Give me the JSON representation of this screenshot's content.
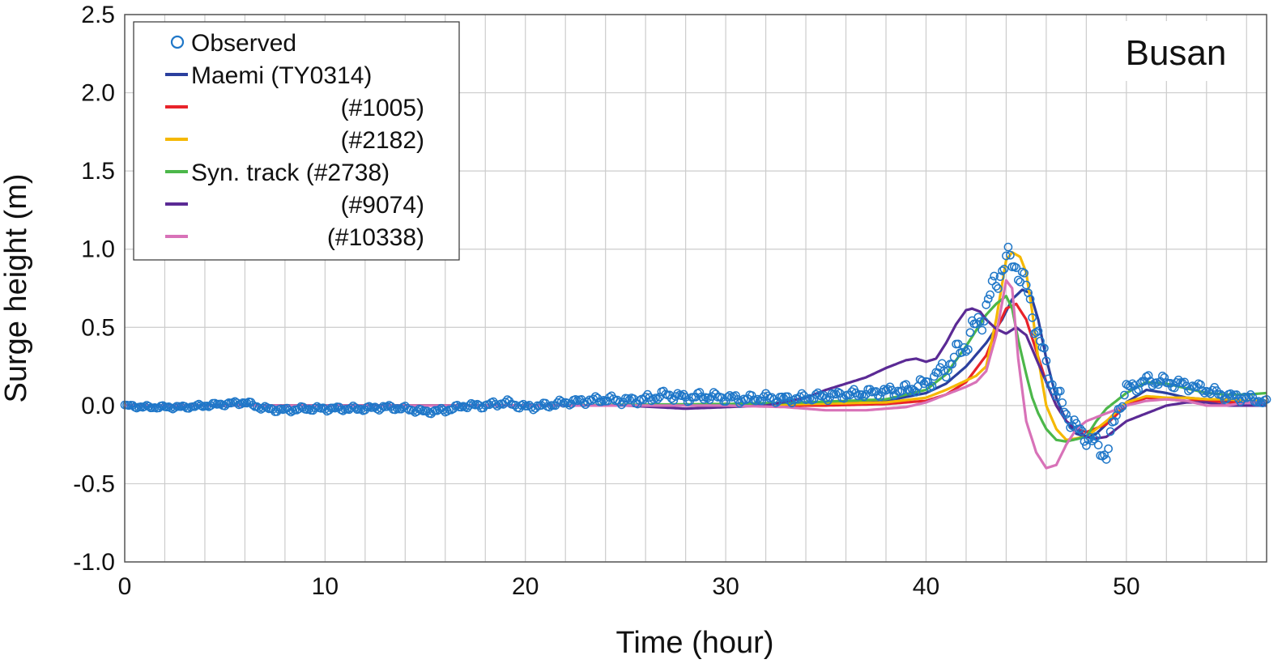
{
  "chart_data": {
    "type": "line",
    "station_label": "Busan",
    "xlabel": "Time (hour)",
    "ylabel": "Surge height (m)",
    "xlim": [
      0,
      57
    ],
    "ylim": [
      -1.0,
      2.5
    ],
    "x_ticks": [
      0,
      10,
      20,
      30,
      40,
      50
    ],
    "x_tick_labels": [
      "0",
      "10",
      "20",
      "30",
      "40",
      "50"
    ],
    "x_minor_step": 2,
    "y_ticks": [
      -1.0,
      -0.5,
      0.0,
      0.5,
      1.0,
      1.5,
      2.0,
      2.5
    ],
    "y_tick_labels": [
      "-1.0",
      "-0.5",
      "0.0",
      "0.5",
      "1.0",
      "1.5",
      "2.0",
      "2.5"
    ],
    "grid": true,
    "legend_position": "top-left",
    "legend": [
      {
        "marker": "circle",
        "label": "Observed",
        "color": "#1f77c8"
      },
      {
        "marker": "line",
        "label": "Maemi (TY0314)",
        "color": "#2b3f9e"
      },
      {
        "marker": "line",
        "label": "(#1005)",
        "color": "#e8232a"
      },
      {
        "marker": "line",
        "label": "(#2182)",
        "color": "#f5b800"
      },
      {
        "marker": "line",
        "label": "Syn. track (#2738)",
        "color": "#4cb74a"
      },
      {
        "marker": "line",
        "label": "(#9074)",
        "color": "#5b2a95"
      },
      {
        "marker": "line",
        "label": "(#10338)",
        "color": "#d872b8"
      }
    ],
    "series": [
      {
        "name": "Maemi (TY0314)",
        "color": "#2b3f9e",
        "x": [
          0,
          10,
          20,
          30,
          34,
          38,
          40,
          41,
          42,
          43,
          43.8,
          44.3,
          44.8,
          45.2,
          45.6,
          46,
          46.5,
          47,
          47.5,
          48,
          48.5,
          49,
          50,
          51,
          52,
          53,
          54,
          55,
          56,
          57
        ],
        "y": [
          0.0,
          0.0,
          0.0,
          0.0,
          0.01,
          0.03,
          0.08,
          0.14,
          0.25,
          0.4,
          0.55,
          0.68,
          0.74,
          0.72,
          0.55,
          0.3,
          0.05,
          -0.1,
          -0.18,
          -0.2,
          -0.18,
          -0.12,
          0.02,
          0.1,
          0.08,
          0.05,
          0.04,
          0.03,
          0.02,
          0.02
        ]
      },
      {
        "name": "(#1005)",
        "color": "#e8232a",
        "x": [
          0,
          10,
          20,
          30,
          35,
          38,
          40,
          41,
          42,
          43,
          43.5,
          44,
          44.5,
          45,
          45.5,
          46,
          46.5,
          47,
          47.5,
          48,
          49,
          50,
          51,
          52,
          53,
          54,
          55,
          56,
          57
        ],
        "y": [
          0.0,
          0.0,
          0.0,
          0.0,
          0.0,
          0.01,
          0.03,
          0.07,
          0.15,
          0.32,
          0.48,
          0.62,
          0.65,
          0.55,
          0.35,
          0.15,
          0.0,
          -0.1,
          -0.15,
          -0.17,
          -0.12,
          0.0,
          0.05,
          0.04,
          0.03,
          0.03,
          0.02,
          0.02,
          0.02
        ]
      },
      {
        "name": "(#2182)",
        "color": "#f5b800",
        "x": [
          0,
          10,
          20,
          30,
          34,
          38,
          40,
          41,
          42,
          42.5,
          43,
          43.5,
          44,
          44.3,
          44.7,
          45,
          45.3,
          45.6,
          46,
          46.5,
          47,
          48,
          49,
          50,
          51,
          52,
          53,
          54,
          55,
          56,
          57
        ],
        "y": [
          0.0,
          0.0,
          0.0,
          0.0,
          0.01,
          0.02,
          0.05,
          0.1,
          0.16,
          0.19,
          0.25,
          0.55,
          0.93,
          0.98,
          0.95,
          0.85,
          0.6,
          0.3,
          0.0,
          -0.15,
          -0.22,
          -0.2,
          -0.1,
          0.02,
          0.06,
          0.05,
          0.05,
          0.04,
          0.04,
          0.03,
          0.03
        ]
      },
      {
        "name": "Syn. track (#2738)",
        "color": "#4cb74a",
        "x": [
          0,
          10,
          20,
          30,
          34,
          38,
          40,
          41,
          42,
          42.5,
          43,
          43.5,
          44,
          44.3,
          44.6,
          45,
          45.3,
          45.6,
          46,
          46.5,
          47,
          48,
          48.5,
          49,
          50,
          51,
          52,
          53,
          54,
          55,
          56,
          57
        ],
        "y": [
          0.0,
          0.0,
          0.0,
          0.01,
          0.02,
          0.04,
          0.1,
          0.2,
          0.38,
          0.48,
          0.58,
          0.65,
          0.7,
          0.62,
          0.42,
          0.2,
          0.05,
          -0.05,
          -0.15,
          -0.22,
          -0.23,
          -0.2,
          -0.1,
          -0.02,
          0.08,
          0.15,
          0.14,
          0.11,
          0.08,
          0.07,
          0.07,
          0.08
        ]
      },
      {
        "name": "(#9074)",
        "color": "#5b2a95",
        "x": [
          0,
          10,
          20,
          25,
          28,
          30,
          32,
          34,
          35,
          36,
          37,
          38,
          39,
          39.5,
          40,
          40.5,
          41,
          41.5,
          42,
          42.3,
          42.7,
          43,
          43.5,
          44,
          44.5,
          45,
          45.5,
          46,
          46.5,
          47,
          47.5,
          48,
          48.5,
          49,
          50,
          51,
          52,
          53,
          54,
          55,
          56,
          57
        ],
        "y": [
          0.0,
          0.0,
          0.0,
          0.0,
          -0.02,
          -0.01,
          0.0,
          0.05,
          0.1,
          0.14,
          0.18,
          0.24,
          0.29,
          0.3,
          0.28,
          0.3,
          0.4,
          0.52,
          0.61,
          0.62,
          0.6,
          0.55,
          0.49,
          0.46,
          0.5,
          0.45,
          0.3,
          0.15,
          0.0,
          -0.1,
          -0.15,
          -0.2,
          -0.21,
          -0.2,
          -0.1,
          -0.05,
          0.0,
          0.02,
          0.02,
          0.0,
          0.0,
          0.0
        ]
      },
      {
        "name": "(#10338)",
        "color": "#d872b8",
        "x": [
          0,
          10,
          20,
          30,
          33,
          35,
          37,
          39,
          40,
          41,
          42,
          42.5,
          43,
          43.5,
          44,
          44.3,
          44.6,
          45,
          45.5,
          46,
          46.5,
          47,
          47.5,
          48,
          49,
          50,
          51,
          52,
          53,
          54,
          55,
          56,
          57
        ],
        "y": [
          0.0,
          0.0,
          0.0,
          0.0,
          -0.01,
          -0.03,
          -0.03,
          -0.01,
          0.02,
          0.07,
          0.12,
          0.15,
          0.22,
          0.45,
          0.8,
          0.75,
          0.3,
          -0.1,
          -0.3,
          -0.4,
          -0.38,
          -0.25,
          -0.15,
          -0.1,
          -0.05,
          0.0,
          0.03,
          0.04,
          0.03,
          0.0,
          0.0,
          0.02,
          0.02
        ]
      }
    ],
    "observed": {
      "name": "Observed",
      "color": "#1f77c8",
      "step": 0.1,
      "x": [
        0,
        1,
        2,
        3,
        4,
        5,
        6,
        7,
        8,
        9,
        10,
        11,
        12,
        13,
        14,
        15,
        16,
        17,
        18,
        19,
        20,
        21,
        22,
        23,
        24,
        25,
        26,
        27,
        28,
        29,
        30,
        31,
        32,
        33,
        34,
        35,
        36,
        37,
        38,
        39,
        40,
        41,
        42,
        43,
        43.5,
        44,
        44.5,
        45,
        45.5,
        46,
        46.5,
        47,
        47.5,
        48,
        48.5,
        49,
        49.5,
        50,
        51,
        52,
        53,
        54,
        55,
        56,
        57
      ],
      "y": [
        0.0,
        -0.01,
        -0.01,
        -0.01,
        0.0,
        0.01,
        0.02,
        -0.02,
        -0.03,
        -0.02,
        -0.02,
        -0.02,
        -0.02,
        -0.01,
        -0.02,
        -0.04,
        -0.03,
        0.0,
        0.0,
        0.02,
        -0.01,
        0.0,
        0.02,
        0.03,
        0.04,
        0.03,
        0.04,
        0.07,
        0.05,
        0.06,
        0.05,
        0.04,
        0.05,
        0.04,
        0.05,
        0.06,
        0.07,
        0.08,
        0.09,
        0.1,
        0.14,
        0.24,
        0.4,
        0.62,
        0.8,
        0.93,
        0.9,
        0.75,
        0.5,
        0.25,
        0.08,
        -0.05,
        -0.15,
        -0.2,
        -0.25,
        -0.32,
        -0.05,
        0.1,
        0.16,
        0.15,
        0.13,
        0.1,
        0.06,
        0.05,
        0.02
      ],
      "amplitude": [
        0.01,
        0.012,
        0.012,
        0.012,
        0.013,
        0.014,
        0.015,
        0.017,
        0.017,
        0.017,
        0.017,
        0.017,
        0.017,
        0.017,
        0.017,
        0.017,
        0.017,
        0.018,
        0.02,
        0.022,
        0.022,
        0.022,
        0.022,
        0.025,
        0.025,
        0.03,
        0.03,
        0.032,
        0.032,
        0.032,
        0.03,
        0.03,
        0.03,
        0.03,
        0.03,
        0.03,
        0.03,
        0.03,
        0.035,
        0.04,
        0.05,
        0.07,
        0.09,
        0.1,
        0.1,
        0.09,
        0.09,
        0.09,
        0.09,
        0.08,
        0.07,
        0.06,
        0.06,
        0.06,
        0.06,
        0.06,
        0.06,
        0.05,
        0.04,
        0.04,
        0.035,
        0.035,
        0.03,
        0.03,
        0.02
      ]
    }
  }
}
